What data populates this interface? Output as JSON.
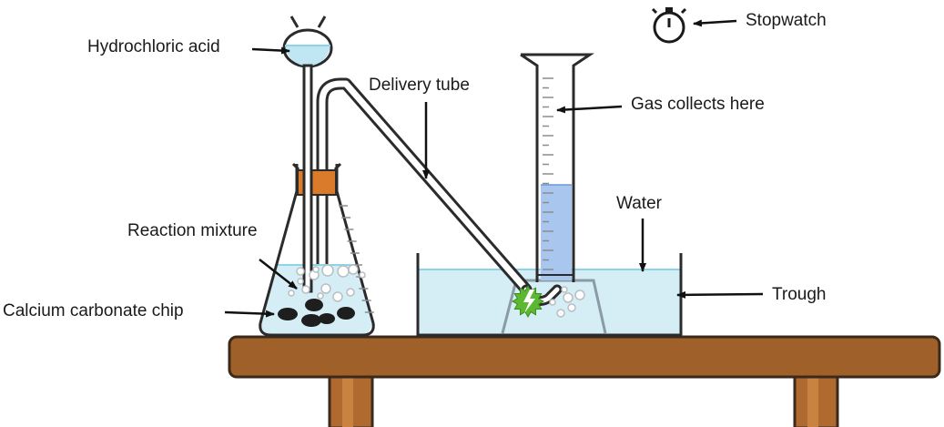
{
  "labels": {
    "hydrochloric_acid": "Hydrochloric acid",
    "delivery_tube": "Delivery tube",
    "gas_collects": "Gas collects here",
    "stopwatch": "Stopwatch",
    "water": "Water",
    "reaction_mixture": "Reaction mixture",
    "calcium_carbonate": "Calcium carbonate chip",
    "trough": "Trough"
  },
  "icons": [
    "stopwatch-icon",
    "reaction-burst-icon"
  ],
  "colors": {
    "outline": "#2b2b2b",
    "liquid": "#bfe6f2",
    "liquid_line": "#8fd3e8",
    "gas": "#a9c7ee",
    "stopper": "#d97b2a",
    "bench_top": "#a0602a",
    "bench_leg": "#b06a30",
    "burst": "#5cb830",
    "chip": "#1e1e1e"
  }
}
